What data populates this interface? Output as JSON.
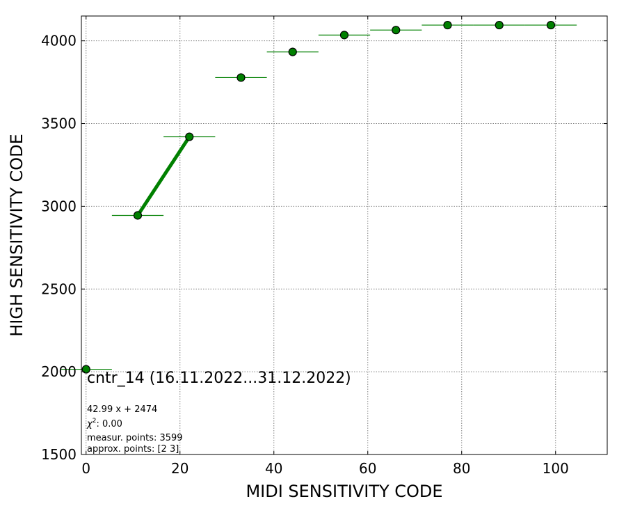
{
  "chart_data": {
    "type": "scatter",
    "title": "",
    "xlabel": "MIDI SENSITIVITY CODE",
    "ylabel": "HIGH SENSITIVITY CODE",
    "xlim": [
      -1,
      111
    ],
    "ylim": [
      1500,
      4150
    ],
    "xticks": [
      0,
      20,
      40,
      60,
      80,
      100
    ],
    "yticks": [
      1500,
      2000,
      2500,
      3000,
      3500,
      4000
    ],
    "grid": true,
    "colors": {
      "series": "#008000",
      "marker_edge": "#000000",
      "grid": "#808080"
    },
    "points": [
      {
        "x": 0,
        "y": 2015,
        "xerr": 5.5
      },
      {
        "x": 11,
        "y": 2945,
        "xerr": 5.5
      },
      {
        "x": 22,
        "y": 3420,
        "xerr": 5.5
      },
      {
        "x": 33,
        "y": 3778,
        "xerr": 5.5
      },
      {
        "x": 44,
        "y": 3933,
        "xerr": 5.5
      },
      {
        "x": 55,
        "y": 4035,
        "xerr": 5.5
      },
      {
        "x": 66,
        "y": 4065,
        "xerr": 5.5
      },
      {
        "x": 77,
        "y": 4095,
        "xerr": 5.5
      },
      {
        "x": 88,
        "y": 4095,
        "xerr": 5.5
      },
      {
        "x": 99,
        "y": 4095,
        "xerr": 5.5
      }
    ],
    "fit_line": {
      "x": [
        11,
        22
      ],
      "y": [
        2945,
        3420
      ]
    },
    "annotations": {
      "label": "cntr_14 (16.11.2022...31.12.2022)",
      "equation": "42.99 x + 2474",
      "chi2_prefix": "χ",
      "chi2_sup": "2",
      "chi2_value": ": 0.00",
      "measur_points": "measur. points: 3599",
      "approx_points": "approx. points: [2 3]"
    }
  }
}
